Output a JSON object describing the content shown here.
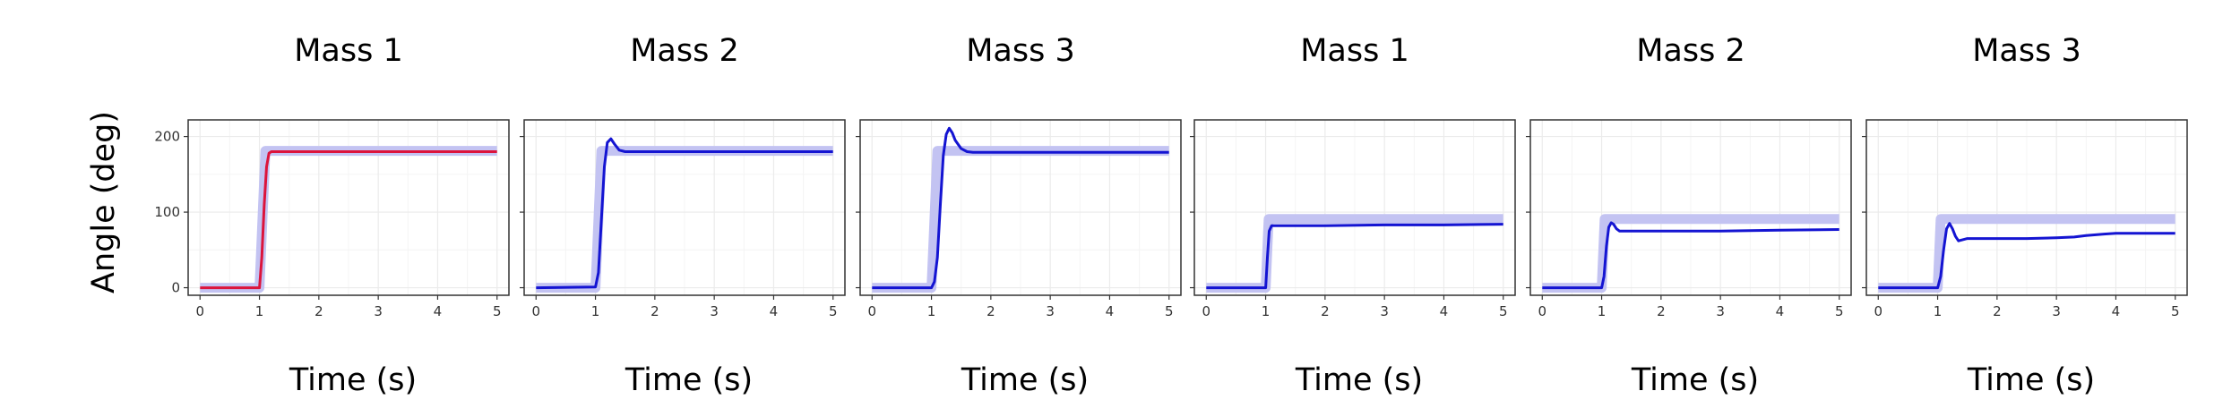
{
  "figure": {
    "ylabel": "Angle (deg)"
  },
  "chart_data": [
    {
      "type": "line",
      "title": "Mass 1",
      "xlabel": "Time (s)",
      "ylabel": "Angle (deg)",
      "xlim": [
        -0.2,
        5.2
      ],
      "ylim": [
        -10,
        222
      ],
      "xticks": [
        "0",
        "1",
        "2",
        "3",
        "4",
        "5"
      ],
      "yticks": [
        "0",
        "100",
        "200"
      ],
      "grid": true,
      "series": [
        {
          "role": "reference",
          "color": "#c3c3f2",
          "x": [
            0,
            1,
            1.1,
            5
          ],
          "y": [
            0,
            0,
            181,
            181
          ]
        },
        {
          "role": "response",
          "color": "#dc143c",
          "x": [
            0,
            1.0,
            1.04,
            1.08,
            1.12,
            1.16,
            1.2,
            5
          ],
          "y": [
            0,
            0,
            40,
            110,
            160,
            178,
            180,
            180
          ]
        }
      ]
    },
    {
      "type": "line",
      "title": "Mass 2",
      "xlabel": "Time (s)",
      "ylabel": "Angle (deg)",
      "xlim": [
        -0.2,
        5.2
      ],
      "ylim": [
        -10,
        222
      ],
      "xticks": [
        "0",
        "1",
        "2",
        "3",
        "4",
        "5"
      ],
      "yticks": [
        "0",
        "100",
        "200"
      ],
      "grid": true,
      "series": [
        {
          "role": "reference",
          "color": "#c3c3f2",
          "x": [
            0,
            1,
            1.1,
            5
          ],
          "y": [
            0,
            0,
            181,
            181
          ]
        },
        {
          "role": "response",
          "color": "#1414d2",
          "x": [
            0,
            1.0,
            1.05,
            1.1,
            1.15,
            1.2,
            1.26,
            1.32,
            1.4,
            1.5,
            5
          ],
          "y": [
            0,
            1,
            20,
            90,
            160,
            192,
            197,
            190,
            182,
            180,
            180
          ]
        }
      ]
    },
    {
      "type": "line",
      "title": "Mass 3",
      "xlabel": "Time (s)",
      "ylabel": "Angle (deg)",
      "xlim": [
        -0.2,
        5.2
      ],
      "ylim": [
        -10,
        222
      ],
      "xticks": [
        "0",
        "1",
        "2",
        "3",
        "4",
        "5"
      ],
      "yticks": [
        "0",
        "100",
        "200"
      ],
      "grid": true,
      "series": [
        {
          "role": "reference",
          "color": "#c3c3f2",
          "x": [
            0,
            1,
            1.1,
            5
          ],
          "y": [
            0,
            0,
            181,
            181
          ]
        },
        {
          "role": "response",
          "color": "#1414d2",
          "x": [
            0,
            1.0,
            1.05,
            1.1,
            1.15,
            1.2,
            1.25,
            1.3,
            1.35,
            1.4,
            1.5,
            1.6,
            1.7,
            5
          ],
          "y": [
            0,
            0,
            8,
            40,
            110,
            175,
            203,
            211,
            205,
            195,
            184,
            180,
            179,
            179
          ]
        }
      ]
    },
    {
      "type": "line",
      "title": "Mass 1",
      "xlabel": "Time (s)",
      "ylabel": "Angle (deg)",
      "xlim": [
        -0.2,
        5.2
      ],
      "ylim": [
        -10,
        222
      ],
      "xticks": [
        "0",
        "1",
        "2",
        "3",
        "4",
        "5"
      ],
      "yticks": [
        "0",
        "100",
        "200"
      ],
      "grid": true,
      "series": [
        {
          "role": "reference",
          "color": "#c3c3f2",
          "x": [
            0,
            1,
            1.05,
            5
          ],
          "y": [
            0,
            0,
            91,
            91
          ]
        },
        {
          "role": "response",
          "color": "#1414d2",
          "x": [
            0,
            1.0,
            1.03,
            1.06,
            1.1,
            2,
            3,
            4,
            5
          ],
          "y": [
            0,
            0,
            40,
            75,
            82,
            82,
            83,
            83,
            84
          ]
        }
      ]
    },
    {
      "type": "line",
      "title": "Mass 2",
      "xlabel": "Time (s)",
      "ylabel": "Angle (deg)",
      "xlim": [
        -0.2,
        5.2
      ],
      "ylim": [
        -10,
        222
      ],
      "xticks": [
        "0",
        "1",
        "2",
        "3",
        "4",
        "5"
      ],
      "yticks": [
        "0",
        "100",
        "200"
      ],
      "grid": true,
      "series": [
        {
          "role": "reference",
          "color": "#c3c3f2",
          "x": [
            0,
            1,
            1.05,
            5
          ],
          "y": [
            0,
            0,
            91,
            91
          ]
        },
        {
          "role": "response",
          "color": "#1414d2",
          "x": [
            0,
            1.0,
            1.04,
            1.08,
            1.12,
            1.16,
            1.2,
            1.25,
            1.3,
            2,
            3,
            4,
            5
          ],
          "y": [
            0,
            0,
            15,
            55,
            80,
            86,
            84,
            78,
            75,
            75,
            75,
            76,
            77
          ]
        }
      ]
    },
    {
      "type": "line",
      "title": "Mass 3",
      "xlabel": "Time (s)",
      "ylabel": "Angle (deg)",
      "xlim": [
        -0.2,
        5.2
      ],
      "ylim": [
        -10,
        222
      ],
      "xticks": [
        "0",
        "1",
        "2",
        "3",
        "4",
        "5"
      ],
      "yticks": [
        "0",
        "100",
        "200"
      ],
      "grid": true,
      "series": [
        {
          "role": "reference",
          "color": "#c3c3f2",
          "x": [
            0,
            1,
            1.05,
            5
          ],
          "y": [
            0,
            0,
            91,
            91
          ]
        },
        {
          "role": "response",
          "color": "#1414d2",
          "x": [
            0,
            1.0,
            1.05,
            1.1,
            1.15,
            1.2,
            1.25,
            1.3,
            1.35,
            1.4,
            1.5,
            1.7,
            2,
            2.5,
            3,
            3.3,
            3.5,
            3.8,
            4,
            4.5,
            5
          ],
          "y": [
            0,
            0,
            15,
            50,
            78,
            85,
            78,
            68,
            62,
            63,
            65,
            65,
            65,
            65,
            66,
            67,
            69,
            71,
            72,
            72,
            72
          ]
        }
      ]
    }
  ]
}
